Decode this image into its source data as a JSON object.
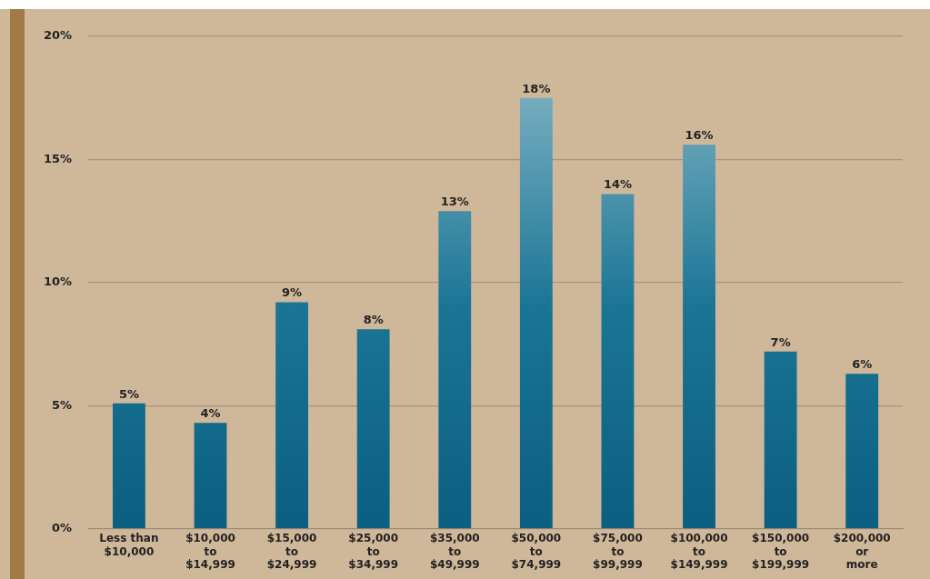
{
  "chart_data": {
    "type": "bar",
    "categories": [
      "Less than $10,000",
      "$10,000 to $14,999",
      "$15,000 to $24,999",
      "$25,000 to $34,999",
      "$35,000 to $49,999",
      "$50,000 to $74,999",
      "$75,000 to $99,999",
      "$100,000 to $149,999",
      "$150,000 to $199,999",
      "$200,000 or more"
    ],
    "values": [
      5.1,
      4.3,
      9.2,
      8.1,
      12.9,
      17.5,
      13.6,
      15.6,
      7.2,
      6.3
    ],
    "value_labels": [
      "5%",
      "4%",
      "9%",
      "8%",
      "13%",
      "18%",
      "14%",
      "16%",
      "7%",
      "6%"
    ],
    "color": "#1a7595",
    "ylim": [
      0,
      20
    ],
    "yticks": [
      {
        "value": 0,
        "label": "0%"
      },
      {
        "value": 5,
        "label": "5%"
      },
      {
        "value": 10,
        "label": "10%"
      },
      {
        "value": 15,
        "label": "15%"
      },
      {
        "value": 20,
        "label": "20%"
      }
    ],
    "grid": "y",
    "legend": false
  }
}
